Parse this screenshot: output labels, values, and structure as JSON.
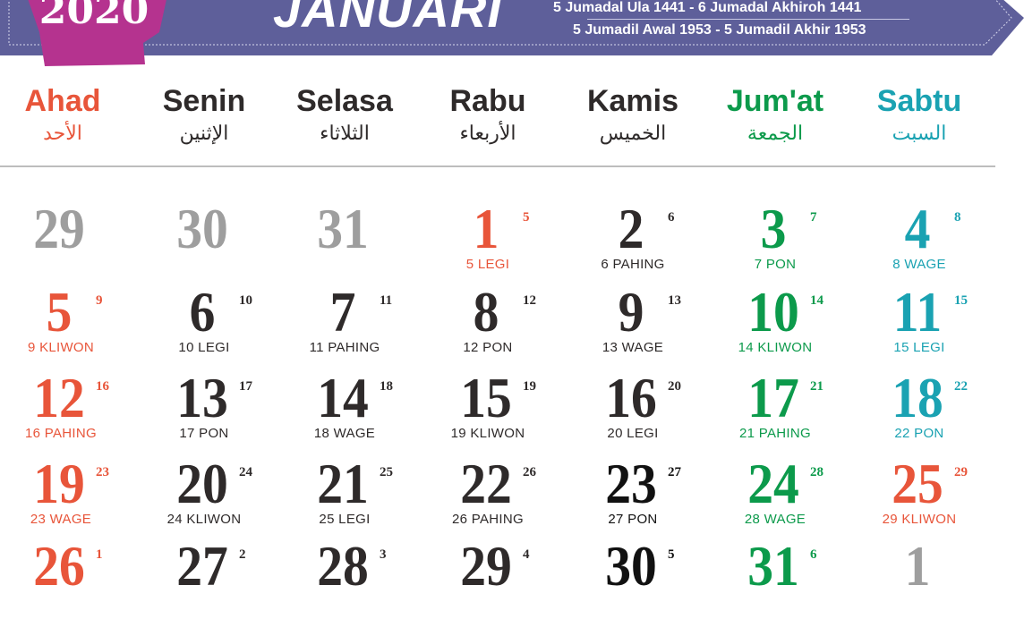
{
  "header": {
    "year": "2020",
    "month": "JANUARI",
    "hijri_range": "5 Jumadal Ula 1441 - 6 Jumadal Akhiroh 1441",
    "javanese_range": "5 Jumadil Awal 1953 - 5 Jumadil Akhir 1953",
    "colors": {
      "banner": "#5e5f9a",
      "year_tag": "#b5338f"
    }
  },
  "colors": {
    "red": "#e8553a",
    "dark": "#2e2a2a",
    "black": "#111111",
    "green": "#0c9a4b",
    "teal": "#1aa2b2",
    "gray": "#9e9e9e"
  },
  "days": [
    {
      "name": "Ahad",
      "arabic": "الأحد",
      "color": "red"
    },
    {
      "name": "Senin",
      "arabic": "الإثنين",
      "color": "dark"
    },
    {
      "name": "Selasa",
      "arabic": "الثلاثاء",
      "color": "dark"
    },
    {
      "name": "Rabu",
      "arabic": "الأربعاء",
      "color": "dark"
    },
    {
      "name": "Kamis",
      "arabic": "الخميس",
      "color": "dark"
    },
    {
      "name": "Jum'at",
      "arabic": "الجمعة",
      "color": "green"
    },
    {
      "name": "Sabtu",
      "arabic": "السبت",
      "color": "teal"
    }
  ],
  "weeks": [
    [
      {
        "d": "29",
        "c": "gray"
      },
      {
        "d": "30",
        "c": "gray"
      },
      {
        "d": "31",
        "c": "gray"
      },
      {
        "d": "1",
        "h": "5",
        "p": "5 LEGI",
        "c": "red"
      },
      {
        "d": "2",
        "h": "6",
        "p": "6 PAHING",
        "c": "dark"
      },
      {
        "d": "3",
        "h": "7",
        "p": "7 PON",
        "c": "green"
      },
      {
        "d": "4",
        "h": "8",
        "p": "8 WAGE",
        "c": "teal"
      }
    ],
    [
      {
        "d": "5",
        "h": "9",
        "p": "9 KLIWON",
        "c": "red"
      },
      {
        "d": "6",
        "h": "10",
        "p": "10 LEGI",
        "c": "dark"
      },
      {
        "d": "7",
        "h": "11",
        "p": "11 PAHING",
        "c": "dark"
      },
      {
        "d": "8",
        "h": "12",
        "p": "12 PON",
        "c": "dark"
      },
      {
        "d": "9",
        "h": "13",
        "p": "13 WAGE",
        "c": "dark"
      },
      {
        "d": "10",
        "h": "14",
        "p": "14 KLIWON",
        "c": "green"
      },
      {
        "d": "11",
        "h": "15",
        "p": "15 LEGI",
        "c": "teal"
      }
    ],
    [
      {
        "d": "12",
        "h": "16",
        "p": "16 PAHING",
        "c": "red"
      },
      {
        "d": "13",
        "h": "17",
        "p": "17 PON",
        "c": "dark"
      },
      {
        "d": "14",
        "h": "18",
        "p": "18 WAGE",
        "c": "dark"
      },
      {
        "d": "15",
        "h": "19",
        "p": "19 KLIWON",
        "c": "dark"
      },
      {
        "d": "16",
        "h": "20",
        "p": "20 LEGI",
        "c": "dark"
      },
      {
        "d": "17",
        "h": "21",
        "p": "21 PAHING",
        "c": "green"
      },
      {
        "d": "18",
        "h": "22",
        "p": "22 PON",
        "c": "teal"
      }
    ],
    [
      {
        "d": "19",
        "h": "23",
        "p": "23 WAGE",
        "c": "red"
      },
      {
        "d": "20",
        "h": "24",
        "p": "24 KLIWON",
        "c": "dark"
      },
      {
        "d": "21",
        "h": "25",
        "p": "25 LEGI",
        "c": "dark"
      },
      {
        "d": "22",
        "h": "26",
        "p": "26 PAHING",
        "c": "dark"
      },
      {
        "d": "23",
        "h": "27",
        "p": "27 PON",
        "c": "black"
      },
      {
        "d": "24",
        "h": "28",
        "p": "28 WAGE",
        "c": "green"
      },
      {
        "d": "25",
        "h": "29",
        "p": "29 KLIWON",
        "c": "red"
      }
    ],
    [
      {
        "d": "26",
        "h": "1",
        "c": "red"
      },
      {
        "d": "27",
        "h": "2",
        "c": "dark"
      },
      {
        "d": "28",
        "h": "3",
        "c": "dark"
      },
      {
        "d": "29",
        "h": "4",
        "c": "dark"
      },
      {
        "d": "30",
        "h": "5",
        "c": "black"
      },
      {
        "d": "31",
        "h": "6",
        "c": "green"
      },
      {
        "d": "1",
        "c": "gray"
      }
    ]
  ]
}
